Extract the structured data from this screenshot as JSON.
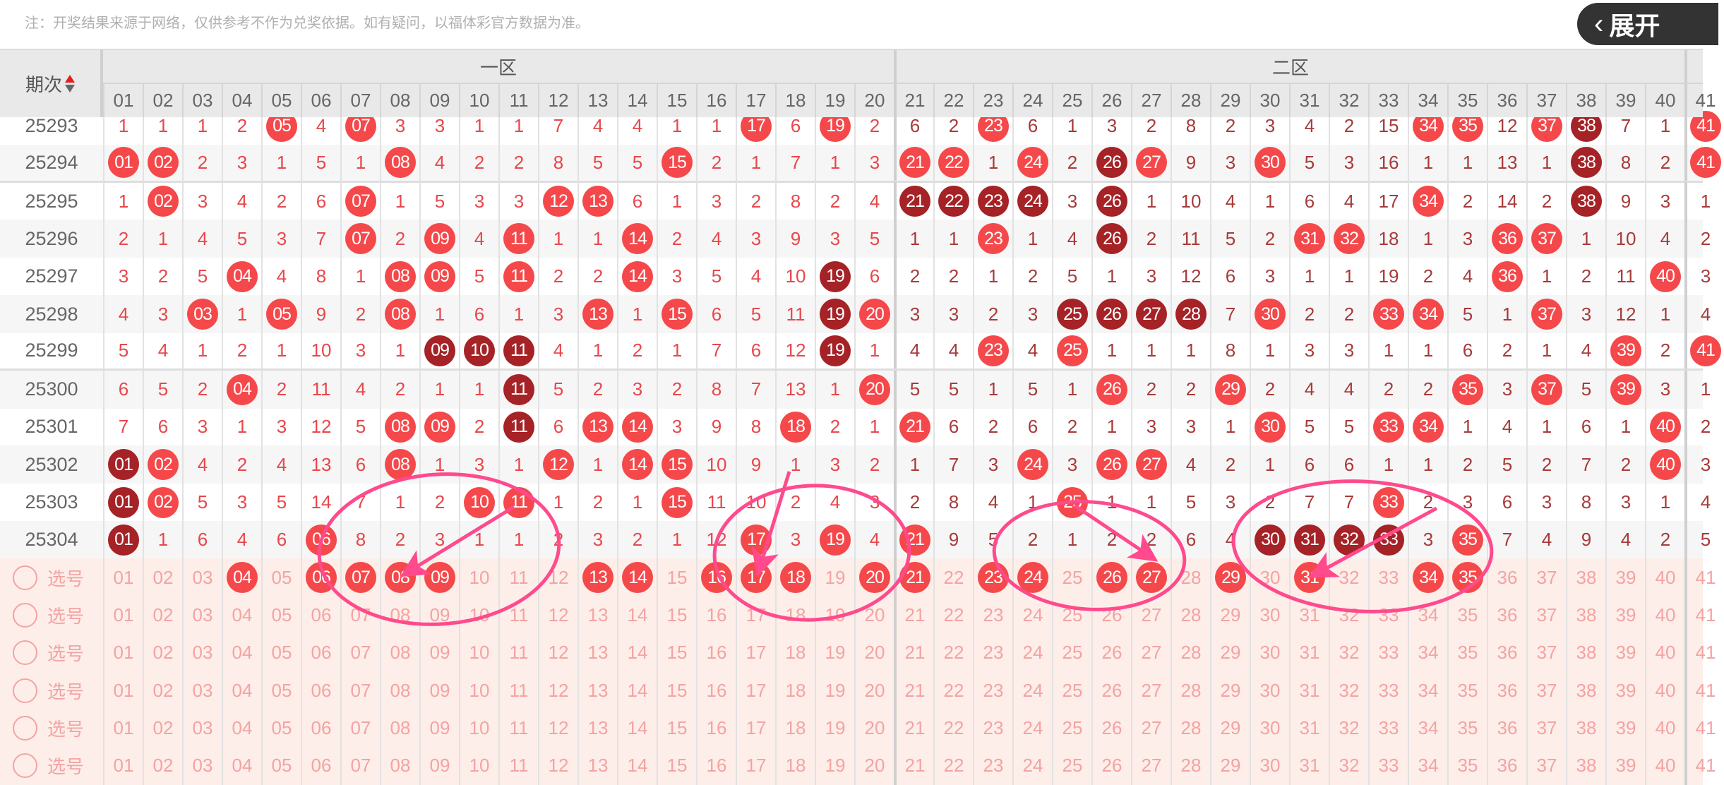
{
  "notice": "注：开奖结果来源于网络，仅供参考不作为兑奖依据。如有疑问，以福体彩官方数据为准。",
  "header": {
    "period_label": "期次",
    "zones": [
      "一区",
      "二区"
    ],
    "columns": [
      "01",
      "02",
      "03",
      "04",
      "05",
      "06",
      "07",
      "08",
      "09",
      "10",
      "11",
      "12",
      "13",
      "14",
      "15",
      "16",
      "17",
      "18",
      "19",
      "20",
      "21",
      "22",
      "23",
      "24",
      "25",
      "26",
      "27",
      "28",
      "29",
      "30",
      "31",
      "32",
      "33",
      "34",
      "35",
      "36",
      "37",
      "38",
      "39",
      "40",
      "41"
    ]
  },
  "rows": [
    {
      "period": "25293",
      "values": [
        1,
        1,
        1,
        2,
        "05",
        4,
        "07",
        3,
        3,
        1,
        1,
        7,
        4,
        4,
        1,
        1,
        "17",
        6,
        "19",
        2,
        6,
        2,
        "23",
        6,
        1,
        3,
        2,
        8,
        2,
        3,
        4,
        2,
        15,
        "34",
        "35",
        12,
        "37",
        "38",
        7,
        1,
        "41"
      ],
      "dark": [
        "38"
      ]
    },
    {
      "period": "25294",
      "values": [
        "01",
        "02",
        2,
        3,
        1,
        5,
        1,
        "08",
        4,
        2,
        2,
        8,
        5,
        5,
        "15",
        2,
        1,
        7,
        1,
        3,
        "21",
        "22",
        1,
        "24",
        2,
        "26",
        "27",
        9,
        3,
        "30",
        5,
        3,
        16,
        1,
        1,
        13,
        1,
        "38",
        8,
        2,
        "41"
      ],
      "dark": [
        "26",
        "38"
      ]
    },
    {
      "period": "25295",
      "values": [
        1,
        "02",
        3,
        4,
        2,
        6,
        "07",
        1,
        5,
        3,
        3,
        "12",
        "13",
        6,
        1,
        3,
        2,
        8,
        2,
        4,
        "21",
        "22",
        "23",
        "24",
        3,
        "26",
        1,
        10,
        4,
        1,
        6,
        4,
        17,
        "34",
        2,
        14,
        2,
        "38",
        9,
        3,
        1
      ],
      "dark": [
        "21",
        "22",
        "23",
        "24",
        "26",
        "38"
      ]
    },
    {
      "period": "25296",
      "values": [
        2,
        1,
        4,
        5,
        3,
        7,
        "07",
        2,
        "09",
        4,
        "11",
        1,
        1,
        "14",
        2,
        4,
        3,
        9,
        3,
        5,
        1,
        1,
        "23",
        1,
        4,
        "26",
        2,
        11,
        5,
        2,
        "31",
        "32",
        18,
        1,
        3,
        "36",
        "37",
        1,
        10,
        4,
        2
      ],
      "dark": [
        "26"
      ]
    },
    {
      "period": "25297",
      "values": [
        3,
        2,
        5,
        "04",
        4,
        8,
        1,
        "08",
        "09",
        5,
        "11",
        2,
        2,
        "14",
        3,
        5,
        4,
        10,
        "19",
        6,
        2,
        2,
        1,
        2,
        5,
        1,
        3,
        12,
        6,
        3,
        1,
        1,
        19,
        2,
        4,
        "36",
        1,
        2,
        11,
        "40",
        3
      ],
      "dark": [
        "19"
      ]
    },
    {
      "period": "25298",
      "values": [
        4,
        3,
        "03",
        1,
        "05",
        9,
        2,
        "08",
        1,
        6,
        1,
        3,
        "13",
        1,
        "15",
        6,
        5,
        11,
        "19",
        "20",
        3,
        3,
        2,
        3,
        "25",
        "26",
        "27",
        "28",
        7,
        "30",
        2,
        2,
        "33",
        "34",
        5,
        1,
        "37",
        3,
        12,
        1,
        4
      ],
      "dark": [
        "19",
        "25",
        "26",
        "27",
        "28"
      ]
    },
    {
      "period": "25299",
      "values": [
        5,
        4,
        1,
        2,
        1,
        10,
        3,
        1,
        "09",
        "10",
        "11",
        4,
        1,
        2,
        1,
        7,
        6,
        12,
        "19",
        1,
        4,
        4,
        "23",
        4,
        "25",
        1,
        1,
        1,
        8,
        1,
        3,
        3,
        1,
        1,
        6,
        2,
        1,
        4,
        "39",
        2,
        "41"
      ],
      "dark": [
        "09",
        "10",
        "11",
        "19"
      ]
    },
    {
      "period": "25300",
      "values": [
        6,
        5,
        2,
        "04",
        2,
        11,
        4,
        2,
        1,
        1,
        "11",
        5,
        2,
        3,
        2,
        8,
        7,
        13,
        1,
        "20",
        5,
        5,
        1,
        5,
        1,
        "26",
        2,
        2,
        "29",
        2,
        4,
        4,
        2,
        2,
        "35",
        3,
        "37",
        5,
        "39",
        3,
        1
      ],
      "dark": [
        "11"
      ]
    },
    {
      "period": "25301",
      "values": [
        7,
        6,
        3,
        1,
        3,
        12,
        5,
        "08",
        "09",
        2,
        "11",
        6,
        "13",
        "14",
        3,
        9,
        8,
        "18",
        2,
        1,
        "21",
        6,
        2,
        6,
        2,
        1,
        3,
        3,
        1,
        "30",
        5,
        5,
        "33",
        "34",
        1,
        4,
        1,
        6,
        1,
        "40",
        2
      ],
      "dark": [
        "11"
      ]
    },
    {
      "period": "25302",
      "values": [
        "01",
        "02",
        4,
        2,
        4,
        13,
        6,
        "08",
        1,
        3,
        1,
        "12",
        1,
        "14",
        "15",
        10,
        9,
        1,
        3,
        2,
        1,
        7,
        3,
        "24",
        3,
        "26",
        "27",
        4,
        2,
        1,
        6,
        6,
        1,
        1,
        2,
        5,
        2,
        7,
        2,
        "40",
        3
      ],
      "dark": [
        "01"
      ]
    },
    {
      "period": "25303",
      "values": [
        "01",
        "02",
        5,
        3,
        5,
        14,
        7,
        1,
        2,
        "10",
        "11",
        1,
        2,
        1,
        "15",
        11,
        10,
        2,
        4,
        3,
        2,
        8,
        4,
        1,
        "25",
        1,
        1,
        5,
        3,
        2,
        7,
        7,
        "33",
        2,
        3,
        6,
        3,
        8,
        3,
        1,
        4
      ],
      "dark": [
        "01"
      ]
    },
    {
      "period": "25304",
      "values": [
        "01",
        1,
        6,
        4,
        6,
        "06",
        8,
        2,
        3,
        1,
        1,
        2,
        3,
        2,
        1,
        12,
        "17",
        3,
        "19",
        4,
        "21",
        9,
        5,
        2,
        1,
        2,
        2,
        6,
        4,
        "30",
        "31",
        "32",
        "33",
        3,
        "35",
        7,
        4,
        9,
        4,
        2,
        5
      ],
      "dark": [
        "01",
        "30",
        "31",
        "32",
        "33"
      ]
    }
  ],
  "select_rows": [
    {
      "label": "选号",
      "selected": [
        "04",
        "06",
        "07",
        "08",
        "09",
        "13",
        "14",
        "16",
        "17",
        "18",
        "20",
        "21",
        "23",
        "24",
        "26",
        "27",
        "29",
        "31",
        "34",
        "35"
      ]
    },
    {
      "label": "选号",
      "selected": []
    },
    {
      "label": "选号",
      "selected": []
    },
    {
      "label": "选号",
      "selected": []
    },
    {
      "label": "选号",
      "selected": []
    },
    {
      "label": "选号",
      "selected": []
    }
  ],
  "expand_button": {
    "label": "展开",
    "icon": "chevron-left-icon"
  },
  "colors": {
    "ball": "#f5484a",
    "ball_dark": "#a52226",
    "zone1_text": "#e8474c",
    "zone2_text": "#a83a3a",
    "select_text": "#f4a3a3",
    "annotation": "#ff4a8d"
  }
}
